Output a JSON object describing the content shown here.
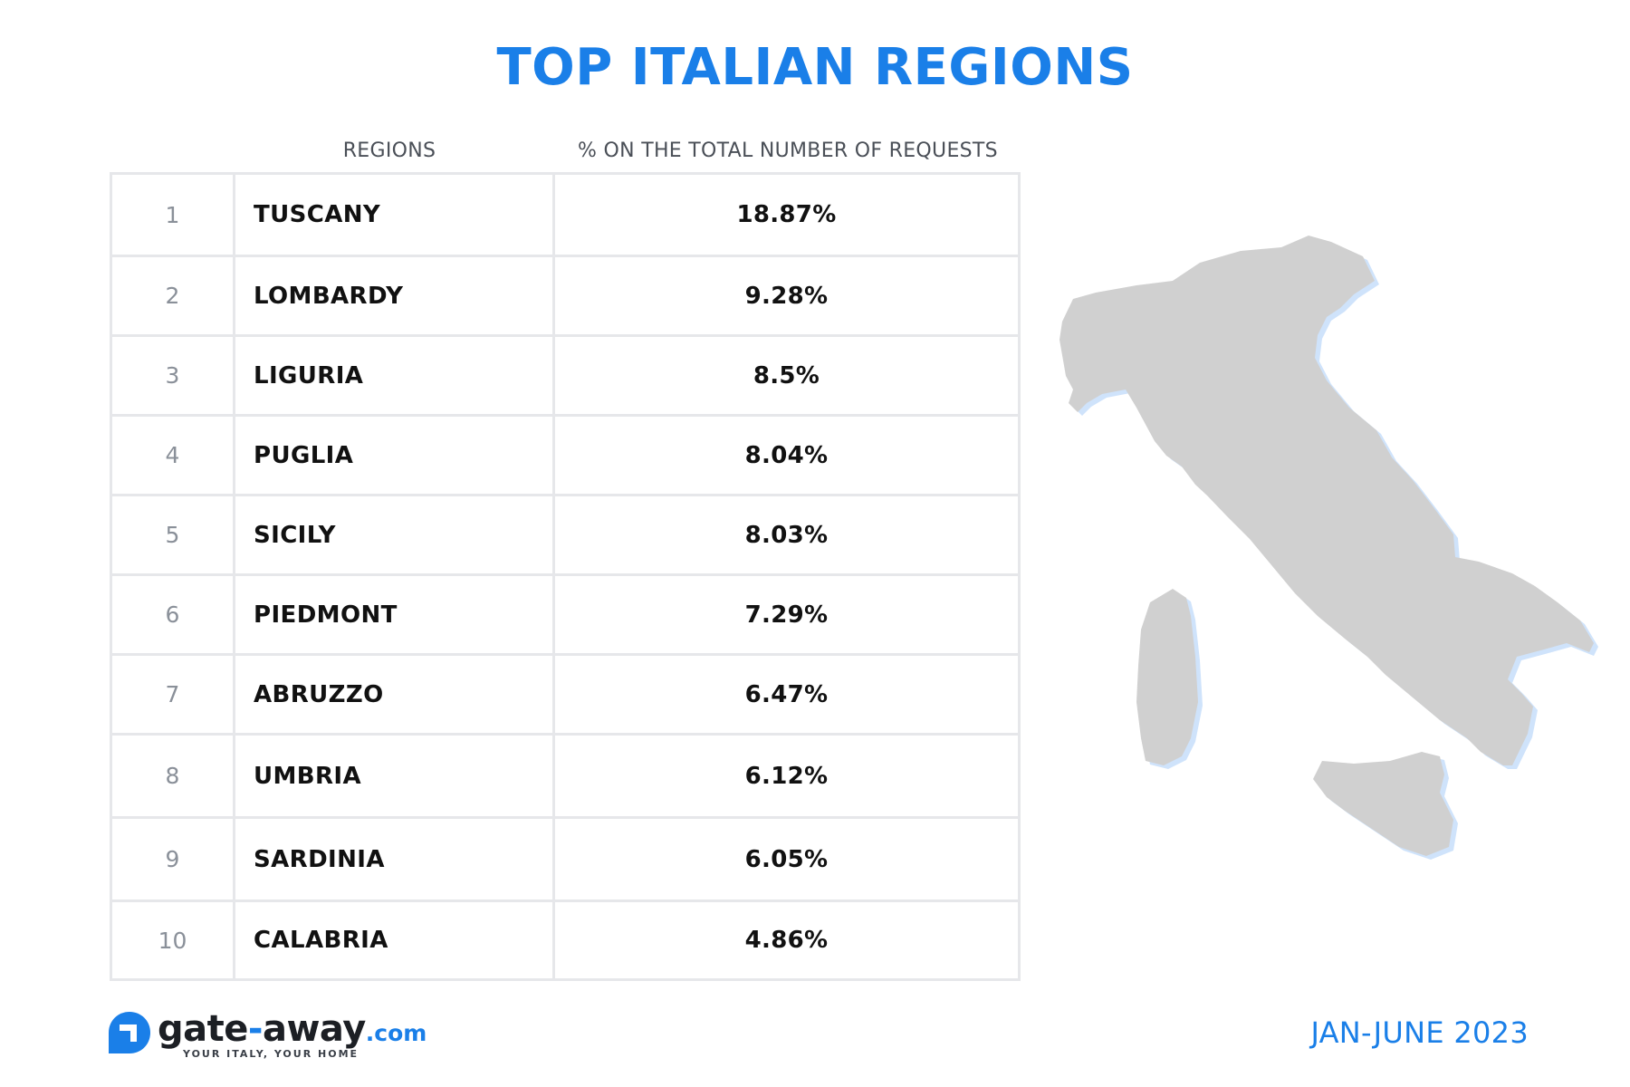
{
  "title": "TOP ITALIAN REGIONS",
  "colors": {
    "accent": "#1a7fe8",
    "map_fill": "#d0d0d0",
    "map_shadow": "#cfe3fb",
    "grid": "#e6e7ea"
  },
  "chart_data": {
    "type": "table",
    "title": "TOP ITALIAN REGIONS",
    "columns": [
      "",
      "REGIONS",
      "% ON THE TOTAL NUMBER OF REQUESTS"
    ],
    "rows": [
      {
        "rank": "1",
        "region": "TUSCANY",
        "pct": "18.87%"
      },
      {
        "rank": "2",
        "region": "LOMBARDY",
        "pct": "9.28%"
      },
      {
        "rank": "3",
        "region": "LIGURIA",
        "pct": "8.5%"
      },
      {
        "rank": "4",
        "region": "PUGLIA",
        "pct": "8.04%"
      },
      {
        "rank": "5",
        "region": "SICILY",
        "pct": "8.03%"
      },
      {
        "rank": "6",
        "region": "PIEDMONT",
        "pct": "7.29%"
      },
      {
        "rank": "7",
        "region": "ABRUZZO",
        "pct": "6.47%"
      },
      {
        "rank": "8",
        "region": "UMBRIA",
        "pct": "6.12%"
      },
      {
        "rank": "9",
        "region": "SARDINIA",
        "pct": "6.05%"
      },
      {
        "rank": "10",
        "region": "CALABRIA",
        "pct": "4.86%"
      }
    ]
  },
  "map": {
    "icon": "italy-map-icon"
  },
  "logo": {
    "icon": "gate-away-logo-icon",
    "name_part1": "gate",
    "name_hyphen": "-",
    "name_part2": "away",
    "domain": ".com",
    "tagline": "YOUR ITALY, YOUR HOME"
  },
  "period": "JAN-JUNE 2023"
}
